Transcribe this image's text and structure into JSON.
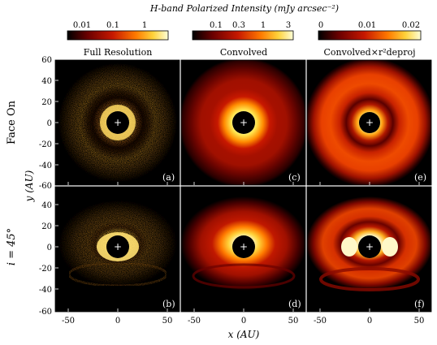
{
  "figure": {
    "top_title": "H-band Polarized Intensity (mJy arcsec⁻²)",
    "colorbars": [
      {
        "ticks": [
          "0.01",
          "0.1",
          "1"
        ],
        "colors": [
          "#000000",
          "#6a0000",
          "#c61800",
          "#ff7a00",
          "#ffd23a",
          "#ffffd8"
        ]
      },
      {
        "ticks": [
          "0.1",
          "0.3",
          "1",
          "3"
        ],
        "colors": [
          "#000000",
          "#6a0000",
          "#c61800",
          "#ff7a00",
          "#ffd23a",
          "#ffffd8"
        ]
      },
      {
        "ticks": [
          "0",
          "0.01",
          "0.02"
        ],
        "colors": [
          "#000000",
          "#6a0000",
          "#c61800",
          "#ff7a00",
          "#ffd23a",
          "#ffffd8"
        ]
      }
    ],
    "column_titles": [
      "Full Resolution",
      "Convolved",
      "Convolved×r²deproj"
    ],
    "row_titles": [
      "Face On",
      "i = 45°"
    ],
    "panel_labels": [
      "(a)",
      "(c)",
      "(e)",
      "(b)",
      "(d)",
      "(f)"
    ],
    "y_axis": {
      "label": "y (AU)",
      "ticks_top": [
        "60",
        "40",
        "20",
        "0",
        "-20",
        "-40",
        "-60"
      ],
      "ticks_bottom": [
        "40",
        "20",
        "0",
        "-20",
        "-40",
        "-60"
      ]
    },
    "x_axis": {
      "label": "x (AU)",
      "ticks": [
        "-50",
        "0",
        "50"
      ]
    },
    "center_marker": "+"
  }
}
